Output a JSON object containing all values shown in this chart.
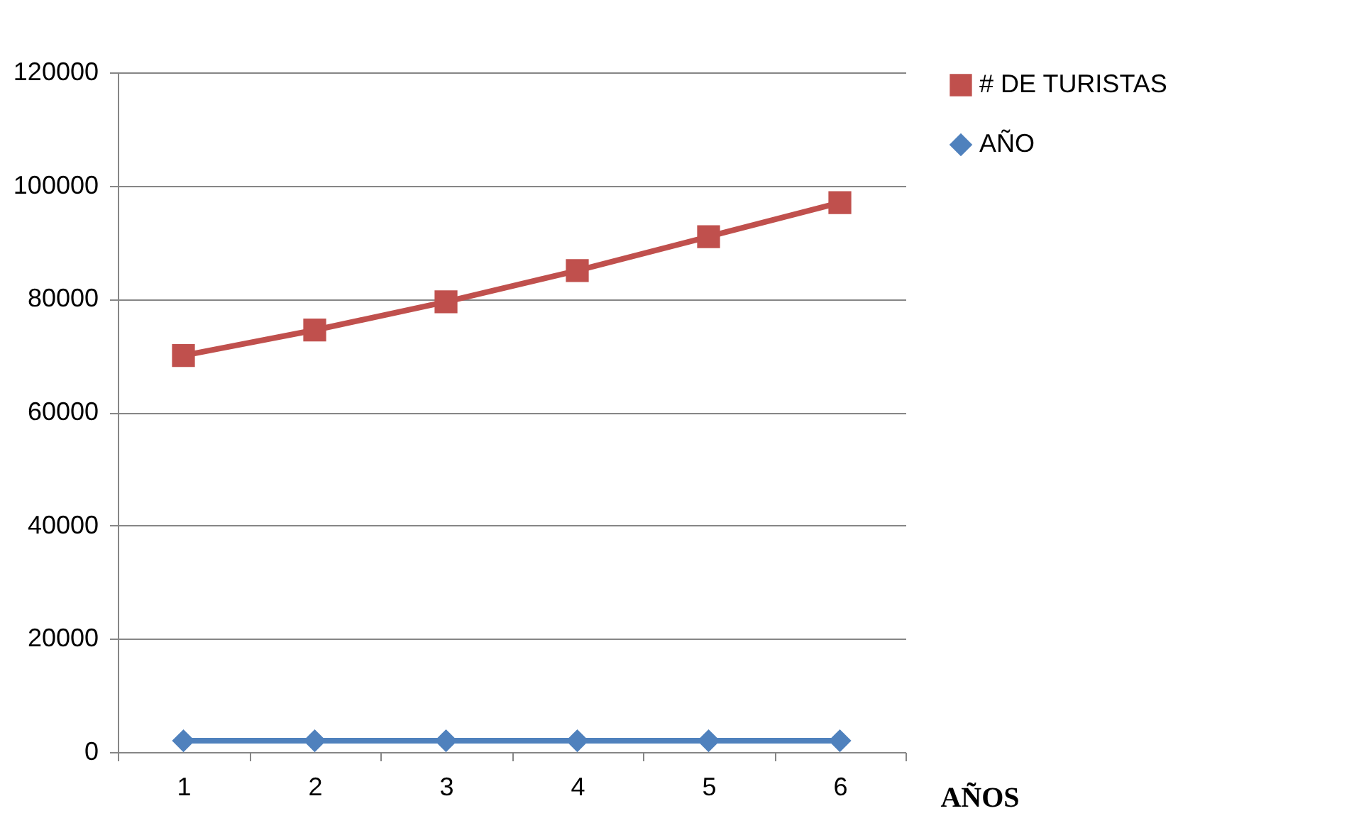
{
  "chart_data": {
    "type": "line",
    "categories": [
      "1",
      "2",
      "3",
      "4",
      "5",
      "6"
    ],
    "xlabel": "AÑOS",
    "series": [
      {
        "name": "# DE TURISTAS",
        "color": "#c0504d",
        "marker": "square",
        "values": [
          70000,
          74500,
          79500,
          85000,
          91000,
          97000
        ]
      },
      {
        "name": "AÑO",
        "color": "#4f81bd",
        "marker": "diamond",
        "values": [
          2000,
          2000,
          2000,
          2000,
          2000,
          2000
        ]
      }
    ],
    "ylim": [
      0,
      120000
    ],
    "yticks": [
      0,
      20000,
      40000,
      60000,
      80000,
      100000,
      120000
    ],
    "grid": "y",
    "legend": "right"
  }
}
